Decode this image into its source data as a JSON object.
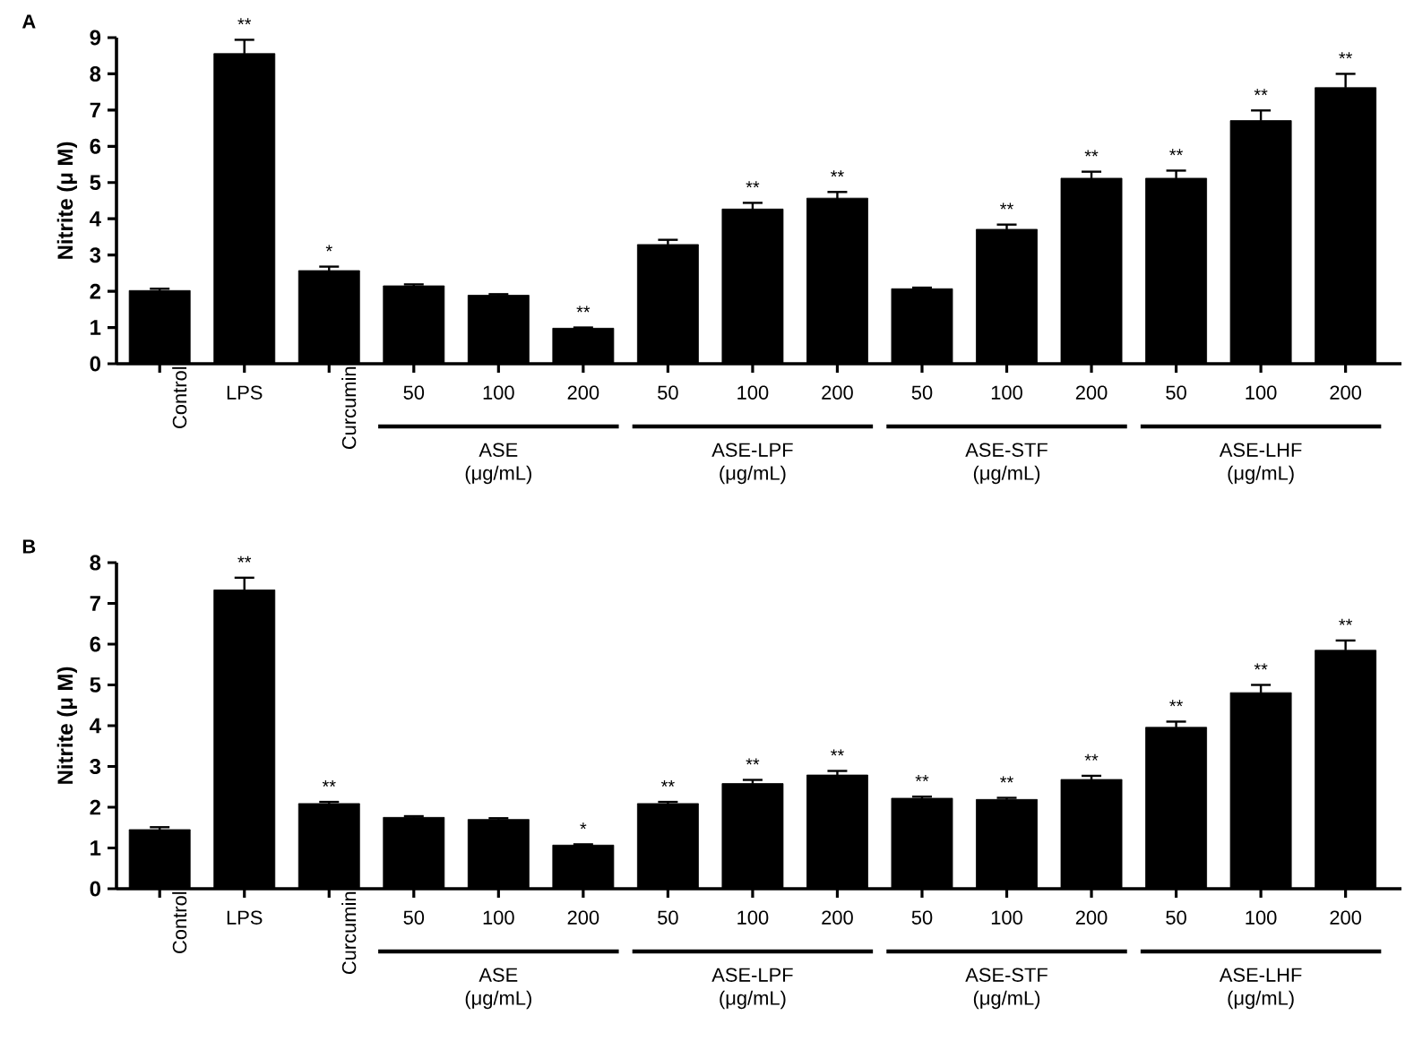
{
  "chart_data": [
    {
      "type": "bar",
      "title": "A",
      "ylabel": "Nitrite (μ M)",
      "color": "#000000",
      "categories": [
        "Control",
        "LPS",
        "Curcumin",
        "50",
        "100",
        "200",
        "50",
        "100",
        "200",
        "50",
        "100",
        "200",
        "50",
        "100",
        "200"
      ],
      "values": [
        2.02,
        8.56,
        2.57,
        2.15,
        1.89,
        0.98,
        3.29,
        4.27,
        4.57,
        2.07,
        3.71,
        5.12,
        5.12,
        6.71,
        7.62
      ],
      "errors": [
        0.05,
        0.38,
        0.11,
        0.04,
        0.03,
        0.02,
        0.13,
        0.17,
        0.17,
        0.03,
        0.13,
        0.18,
        0.21,
        0.28,
        0.38
      ],
      "value_labels": [
        null,
        "**",
        "*",
        null,
        null,
        "**",
        null,
        "**",
        "**",
        null,
        "**",
        "**",
        "**",
        "**",
        "**"
      ],
      "ylim": [
        0,
        9
      ],
      "yticks": [
        0,
        1,
        2,
        3,
        4,
        5,
        6,
        7,
        8,
        9
      ],
      "annotations": [
        "ASE (μg/mL)",
        "ASE-LPF (μg/mL)",
        "ASE-STF (μg/mL)",
        "ASE-LHF (μg/mL)"
      ]
    },
    {
      "type": "bar",
      "title": "B",
      "ylabel": "Nitrite (μ M)",
      "color": "#000000",
      "categories": [
        "Control",
        "LPS",
        "Curcumin",
        "50",
        "100",
        "200",
        "50",
        "100",
        "200",
        "50",
        "100",
        "200",
        "50",
        "100",
        "200"
      ],
      "values": [
        1.45,
        7.33,
        2.09,
        1.75,
        1.7,
        1.07,
        2.09,
        2.58,
        2.79,
        2.22,
        2.19,
        2.68,
        3.96,
        4.81,
        5.85
      ],
      "errors": [
        0.06,
        0.3,
        0.04,
        0.03,
        0.03,
        0.02,
        0.04,
        0.09,
        0.1,
        0.04,
        0.04,
        0.09,
        0.14,
        0.19,
        0.24
      ],
      "value_labels": [
        null,
        "**",
        "**",
        null,
        null,
        "*",
        "**",
        "**",
        "**",
        "**",
        "**",
        "**",
        "**",
        "**",
        "**"
      ],
      "ylim": [
        0,
        8
      ],
      "yticks": [
        0,
        1,
        2,
        3,
        4,
        5,
        6,
        7,
        8
      ],
      "annotations": [
        "ASE (μg/mL)",
        "ASE-LPF (μg/mL)",
        "ASE-STF (μg/mL)",
        "ASE-LHF (μg/mL)"
      ]
    }
  ]
}
